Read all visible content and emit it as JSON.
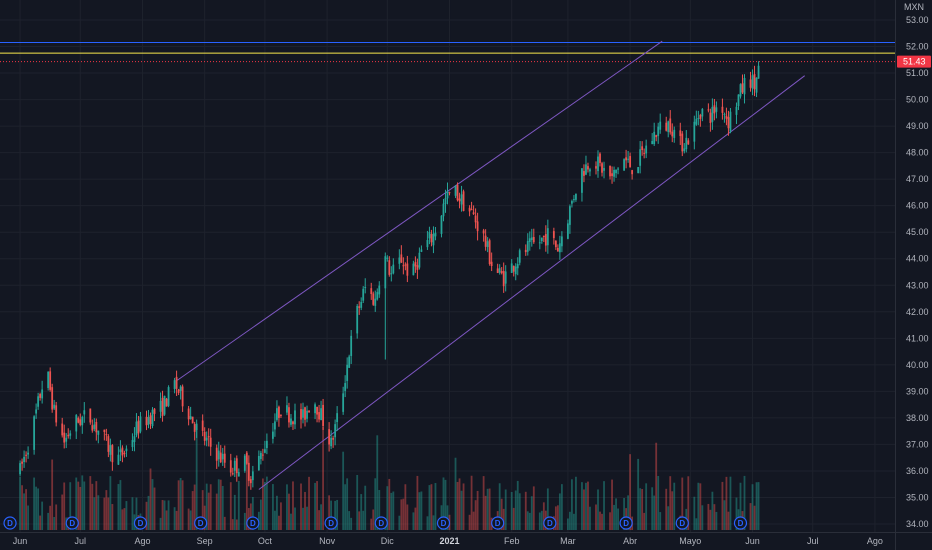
{
  "chart_data": {
    "type": "candlestick",
    "currency": "MXN",
    "y_axis": {
      "min": 34,
      "max": 53,
      "ticks": [
        "53.00",
        "52.00",
        "51.00",
        "50.00",
        "49.00",
        "48.00",
        "47.00",
        "46.00",
        "45.00",
        "44.00",
        "43.00",
        "42.00",
        "41.00",
        "40.00",
        "39.00",
        "38.00",
        "37.00",
        "36.00",
        "35.00",
        "34.00"
      ]
    },
    "x_axis": {
      "labels": [
        {
          "text": "Jun",
          "day": 0
        },
        {
          "text": "Jul",
          "day": 30
        },
        {
          "text": "Ago",
          "day": 61
        },
        {
          "text": "Sep",
          "day": 92
        },
        {
          "text": "Oct",
          "day": 122
        },
        {
          "text": "Nov",
          "day": 153
        },
        {
          "text": "Dic",
          "day": 183
        },
        {
          "text": "2021",
          "day": 214,
          "bold": true
        },
        {
          "text": "Feb",
          "day": 245
        },
        {
          "text": "Mar",
          "day": 273
        },
        {
          "text": "Abr",
          "day": 304
        },
        {
          "text": "Mayo",
          "day": 334
        },
        {
          "text": "Jun",
          "day": 365
        },
        {
          "text": "Jul",
          "day": 395
        },
        {
          "text": "Ago",
          "day": 426
        }
      ],
      "start": "2020-06-01"
    },
    "last_price": "51.43",
    "horizontal_lines": [
      {
        "price": 52.15,
        "color": "#2962ff"
      },
      {
        "price": 51.75,
        "color": "#f9e94d"
      },
      {
        "price": 51.43,
        "color": "#f23645",
        "dashed": true
      }
    ],
    "channel": {
      "color": "#7e57c2",
      "upper": [
        {
          "day": 78,
          "price": 39.4
        },
        {
          "day": 320,
          "price": 52.2
        }
      ],
      "lower": [
        {
          "day": 119,
          "price": 35.3
        },
        {
          "day": 391,
          "price": 50.9
        }
      ]
    },
    "dividend_marker": "D",
    "dividend_days": [
      -5,
      26,
      60,
      90,
      116,
      155,
      180,
      211,
      238,
      264,
      302,
      330,
      359
    ],
    "price_path": [
      {
        "day": 0,
        "price": 36.0
      },
      {
        "day": 6,
        "price": 37.5
      },
      {
        "day": 13,
        "price": 39.9
      },
      {
        "day": 17,
        "price": 38.2
      },
      {
        "day": 22,
        "price": 37.1
      },
      {
        "day": 27,
        "price": 37.8
      },
      {
        "day": 34,
        "price": 38.1
      },
      {
        "day": 41,
        "price": 37.3
      },
      {
        "day": 48,
        "price": 36.4
      },
      {
        "day": 53,
        "price": 36.8
      },
      {
        "day": 58,
        "price": 37.6
      },
      {
        "day": 65,
        "price": 38.1
      },
      {
        "day": 71,
        "price": 38.4
      },
      {
        "day": 77,
        "price": 39.3
      },
      {
        "day": 83,
        "price": 38.4
      },
      {
        "day": 88,
        "price": 37.6
      },
      {
        "day": 94,
        "price": 37.0
      },
      {
        "day": 99,
        "price": 36.6
      },
      {
        "day": 105,
        "price": 36.1
      },
      {
        "day": 112,
        "price": 36.3
      },
      {
        "day": 115,
        "price": 35.8
      },
      {
        "day": 119,
        "price": 36.4
      },
      {
        "day": 125,
        "price": 37.6
      },
      {
        "day": 130,
        "price": 38.4
      },
      {
        "day": 135,
        "price": 38.1
      },
      {
        "day": 141,
        "price": 38.0
      },
      {
        "day": 146,
        "price": 38.8
      },
      {
        "day": 151,
        "price": 37.9
      },
      {
        "day": 155,
        "price": 37.0
      },
      {
        "day": 160,
        "price": 38.6
      },
      {
        "day": 164,
        "price": 40.5
      },
      {
        "day": 168,
        "price": 42.0
      },
      {
        "day": 172,
        "price": 42.9
      },
      {
        "day": 177,
        "price": 42.4
      },
      {
        "day": 181,
        "price": 44.2
      },
      {
        "day": 185,
        "price": 43.4
      },
      {
        "day": 190,
        "price": 44.0
      },
      {
        "day": 195,
        "price": 43.3
      },
      {
        "day": 200,
        "price": 44.3
      },
      {
        "day": 206,
        "price": 44.9
      },
      {
        "day": 212,
        "price": 46.2
      },
      {
        "day": 216,
        "price": 46.6
      },
      {
        "day": 221,
        "price": 46.1
      },
      {
        "day": 226,
        "price": 45.6
      },
      {
        "day": 231,
        "price": 44.8
      },
      {
        "day": 236,
        "price": 43.6
      },
      {
        "day": 241,
        "price": 43.3
      },
      {
        "day": 247,
        "price": 43.9
      },
      {
        "day": 253,
        "price": 44.4
      },
      {
        "day": 258,
        "price": 44.6
      },
      {
        "day": 263,
        "price": 44.9
      },
      {
        "day": 268,
        "price": 44.4
      },
      {
        "day": 273,
        "price": 45.6
      },
      {
        "day": 279,
        "price": 47.2
      },
      {
        "day": 285,
        "price": 47.8
      },
      {
        "day": 290,
        "price": 47.4
      },
      {
        "day": 295,
        "price": 47.0
      },
      {
        "day": 300,
        "price": 47.8
      },
      {
        "day": 306,
        "price": 47.4
      },
      {
        "day": 312,
        "price": 48.2
      },
      {
        "day": 318,
        "price": 48.9
      },
      {
        "day": 324,
        "price": 49.1
      },
      {
        "day": 329,
        "price": 48.3
      },
      {
        "day": 334,
        "price": 48.6
      },
      {
        "day": 339,
        "price": 49.6
      },
      {
        "day": 344,
        "price": 49.4
      },
      {
        "day": 349,
        "price": 49.9
      },
      {
        "day": 353,
        "price": 49.2
      },
      {
        "day": 358,
        "price": 50.1
      },
      {
        "day": 363,
        "price": 50.9
      },
      {
        "day": 366,
        "price": 50.5
      },
      {
        "day": 369,
        "price": 51.43
      }
    ]
  }
}
